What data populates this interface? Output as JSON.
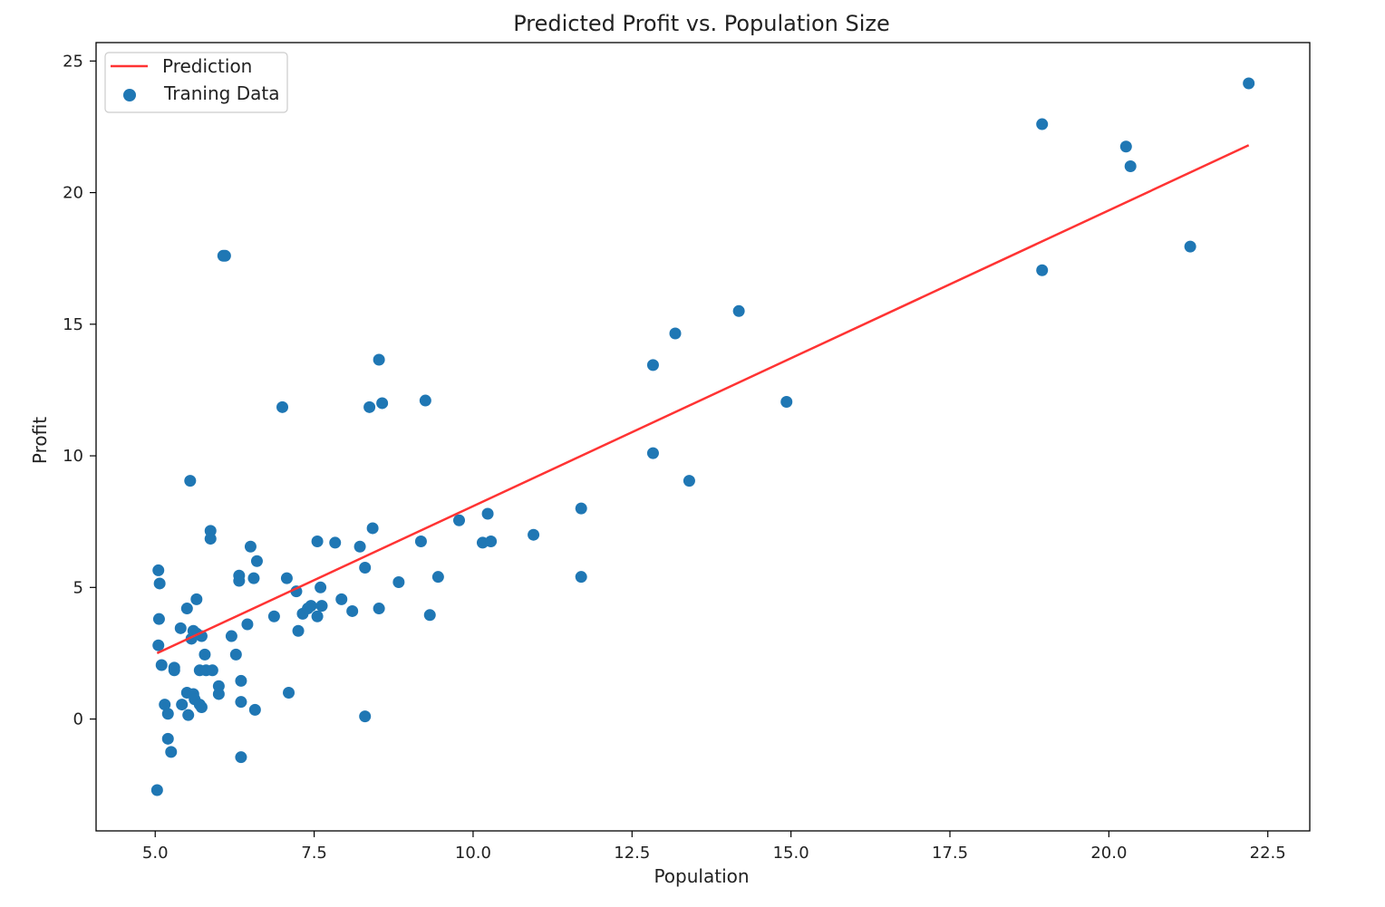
{
  "chart_data": {
    "type": "scatter",
    "title": "Predicted Profit vs. Population Size",
    "xlabel": "Population",
    "ylabel": "Profit",
    "xlim": [
      4.07,
      23.16
    ],
    "ylim": [
      -4.25,
      25.7
    ],
    "x_ticks": [
      5.0,
      7.5,
      10.0,
      12.5,
      15.0,
      17.5,
      20.0,
      22.5
    ],
    "x_tick_labels": [
      "5.0",
      "7.5",
      "10.0",
      "12.5",
      "15.0",
      "17.5",
      "20.0",
      "22.5"
    ],
    "y_ticks": [
      0,
      5,
      10,
      15,
      20,
      25
    ],
    "y_tick_labels": [
      "0",
      "5",
      "10",
      "15",
      "20",
      "25"
    ],
    "legend": {
      "placement": "top-left",
      "entries": [
        {
          "label": "Prediction",
          "kind": "line",
          "color": "#ff3333"
        },
        {
          "label": "Traning Data",
          "kind": "marker",
          "color": "#1f77b4"
        }
      ]
    },
    "series": [
      {
        "name": "Prediction",
        "kind": "line",
        "color": "#ff3333",
        "x": [
          5.03,
          22.2
        ],
        "y": [
          2.5,
          21.8
        ]
      },
      {
        "name": "Traning Data",
        "kind": "scatter",
        "color": "#1f77b4",
        "x": [
          5.05,
          5.07,
          5.06,
          5.05,
          5.1,
          5.15,
          5.2,
          5.2,
          5.25,
          5.3,
          5.3,
          5.4,
          5.42,
          5.5,
          5.5,
          5.52,
          5.55,
          5.57,
          5.6,
          5.6,
          5.62,
          5.65,
          5.65,
          5.7,
          5.7,
          5.73,
          5.73,
          5.78,
          5.8,
          5.87,
          5.87,
          5.9,
          6.0,
          6.0,
          6.1,
          6.2,
          6.27,
          6.32,
          6.32,
          6.35,
          6.35,
          6.35,
          6.45,
          6.5,
          6.55,
          6.57,
          6.6,
          6.87,
          7.0,
          7.07,
          7.1,
          7.22,
          7.25,
          7.32,
          7.4,
          7.45,
          7.55,
          7.55,
          7.6,
          7.62,
          7.83,
          7.93,
          8.1,
          8.22,
          8.3,
          8.3,
          8.37,
          8.42,
          8.52,
          8.52,
          8.57,
          8.83,
          9.18,
          9.25,
          9.32,
          9.45,
          9.78,
          10.15,
          10.23,
          10.28,
          10.95,
          11.7,
          11.7,
          12.83,
          12.83,
          13.18,
          13.4,
          14.18,
          14.93,
          18.95,
          18.95,
          20.27,
          20.34,
          21.28,
          22.2,
          5.03,
          6.07
        ],
        "y": [
          5.65,
          5.15,
          3.8,
          2.8,
          2.05,
          0.55,
          0.2,
          -0.75,
          -1.25,
          1.95,
          1.85,
          3.45,
          0.55,
          4.2,
          1.0,
          0.15,
          9.05,
          3.05,
          0.95,
          3.35,
          0.75,
          4.55,
          3.25,
          0.55,
          1.85,
          0.45,
          3.15,
          2.45,
          1.85,
          7.15,
          6.85,
          1.85,
          1.25,
          0.95,
          17.6,
          3.15,
          2.45,
          5.25,
          5.45,
          1.45,
          0.65,
          -1.45,
          3.6,
          6.55,
          5.35,
          0.35,
          6.0,
          3.9,
          11.85,
          5.35,
          1.0,
          4.85,
          3.35,
          4.0,
          4.2,
          4.3,
          6.75,
          3.9,
          5.0,
          4.3,
          6.7,
          4.55,
          4.1,
          6.55,
          5.75,
          0.1,
          11.85,
          7.25,
          13.65,
          4.2,
          12.0,
          5.2,
          6.75,
          12.1,
          3.95,
          5.4,
          7.55,
          6.7,
          7.8,
          6.75,
          7.0,
          8.0,
          5.4,
          13.45,
          10.1,
          14.65,
          9.05,
          15.5,
          12.05,
          22.6,
          17.05,
          21.75,
          21.0,
          17.95,
          24.15,
          -2.7,
          17.6
        ]
      }
    ]
  }
}
